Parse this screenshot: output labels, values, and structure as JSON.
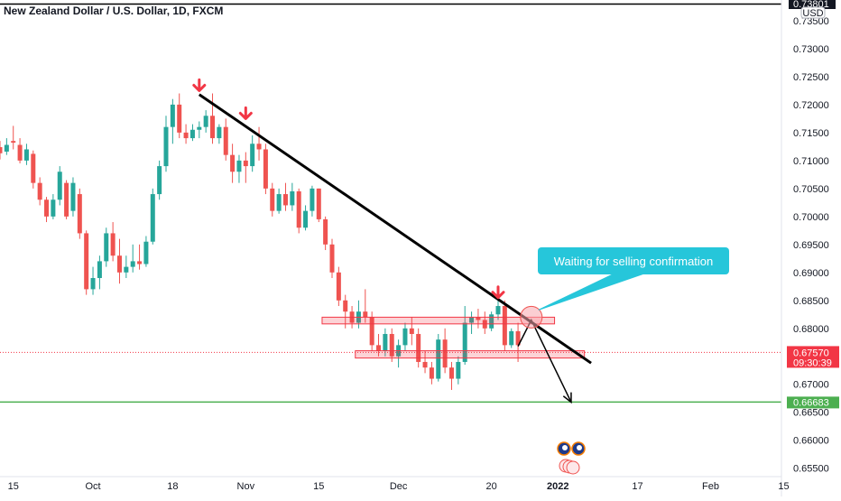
{
  "chart_data": {
    "type": "candlestick",
    "title": "New Zealand Dollar / U.S. Dollar, 1D, FXCM",
    "currency_label": "USD",
    "top_price_label": "0.73801",
    "y_ticks": [
      "0.73500",
      "0.73000",
      "0.72500",
      "0.72000",
      "0.71500",
      "0.71000",
      "0.70500",
      "0.70000",
      "0.69500",
      "0.69000",
      "0.68500",
      "0.68000",
      "0.67500",
      "0.67000",
      "0.66500",
      "0.66000",
      "0.65500"
    ],
    "ylim": [
      0.6535,
      0.7387
    ],
    "x_ticks": [
      {
        "label": "15",
        "idx": 2
      },
      {
        "label": "Oct",
        "idx": 14
      },
      {
        "label": "18",
        "idx": 26
      },
      {
        "label": "Nov",
        "idx": 37
      },
      {
        "label": "15",
        "idx": 48
      },
      {
        "label": "Dec",
        "idx": 60
      },
      {
        "label": "20",
        "idx": 74
      },
      {
        "label": "2022",
        "idx": 84,
        "bold": true
      },
      {
        "label": "17",
        "idx": 96
      },
      {
        "label": "Feb",
        "idx": 107
      },
      {
        "label": "15",
        "idx": 118
      }
    ],
    "current_price": {
      "value": 0.6757,
      "label": "0.67570",
      "countdown": "09:30:39",
      "color": "#f23645"
    },
    "support_level": {
      "value": 0.66683,
      "label": "0.66683",
      "color": "#4caf50"
    },
    "candles": [
      [
        0.7124,
        0.7135,
        0.7102,
        0.7113
      ],
      [
        0.7116,
        0.714,
        0.711,
        0.7128
      ],
      [
        0.7135,
        0.7162,
        0.712,
        0.7132
      ],
      [
        0.7128,
        0.714,
        0.7095,
        0.71
      ],
      [
        0.71,
        0.713,
        0.7092,
        0.712
      ],
      [
        0.7112,
        0.7118,
        0.705,
        0.706
      ],
      [
        0.706,
        0.707,
        0.702,
        0.703
      ],
      [
        0.703,
        0.7035,
        0.699,
        0.7
      ],
      [
        0.7,
        0.704,
        0.6995,
        0.703
      ],
      [
        0.703,
        0.709,
        0.702,
        0.708
      ],
      [
        0.706,
        0.7065,
        0.6995,
        0.7
      ],
      [
        0.701,
        0.707,
        0.7,
        0.706
      ],
      [
        0.704,
        0.705,
        0.696,
        0.697
      ],
      [
        0.697,
        0.6975,
        0.686,
        0.687
      ],
      [
        0.687,
        0.691,
        0.686,
        0.689
      ],
      [
        0.689,
        0.693,
        0.687,
        0.692
      ],
      [
        0.692,
        0.698,
        0.691,
        0.697
      ],
      [
        0.697,
        0.699,
        0.692,
        0.693
      ],
      [
        0.693,
        0.696,
        0.688,
        0.69
      ],
      [
        0.69,
        0.693,
        0.689,
        0.691
      ],
      [
        0.691,
        0.695,
        0.69,
        0.692
      ],
      [
        0.692,
        0.695,
        0.6905,
        0.6915
      ],
      [
        0.6915,
        0.6965,
        0.691,
        0.6955
      ],
      [
        0.6955,
        0.705,
        0.695,
        0.704
      ],
      [
        0.704,
        0.71,
        0.703,
        0.709
      ],
      [
        0.709,
        0.718,
        0.708,
        0.716
      ],
      [
        0.716,
        0.721,
        0.713,
        0.72
      ],
      [
        0.72,
        0.722,
        0.714,
        0.715
      ],
      [
        0.715,
        0.7165,
        0.713,
        0.714
      ],
      [
        0.714,
        0.7165,
        0.7135,
        0.7155
      ],
      [
        0.7155,
        0.717,
        0.714,
        0.716
      ],
      [
        0.716,
        0.719,
        0.715,
        0.718
      ],
      [
        0.718,
        0.722,
        0.713,
        0.714
      ],
      [
        0.714,
        0.7165,
        0.713,
        0.716
      ],
      [
        0.716,
        0.7175,
        0.71,
        0.711
      ],
      [
        0.711,
        0.713,
        0.706,
        0.708
      ],
      [
        0.708,
        0.711,
        0.706,
        0.71
      ],
      [
        0.71,
        0.7115,
        0.706,
        0.709
      ],
      [
        0.709,
        0.7145,
        0.708,
        0.713
      ],
      [
        0.713,
        0.716,
        0.71,
        0.712
      ],
      [
        0.712,
        0.713,
        0.704,
        0.705
      ],
      [
        0.705,
        0.706,
        0.7,
        0.701
      ],
      [
        0.701,
        0.705,
        0.7005,
        0.704
      ],
      [
        0.704,
        0.706,
        0.701,
        0.702
      ],
      [
        0.702,
        0.706,
        0.701,
        0.7045
      ],
      [
        0.7045,
        0.705,
        0.697,
        0.698
      ],
      [
        0.698,
        0.702,
        0.6975,
        0.701
      ],
      [
        0.701,
        0.7055,
        0.7,
        0.705
      ],
      [
        0.705,
        0.705,
        0.699,
        0.6995
      ],
      [
        0.6995,
        0.7,
        0.694,
        0.695
      ],
      [
        0.695,
        0.696,
        0.689,
        0.69
      ],
      [
        0.69,
        0.691,
        0.684,
        0.685
      ],
      [
        0.685,
        0.686,
        0.68,
        0.683
      ],
      [
        0.683,
        0.684,
        0.68,
        0.681
      ],
      [
        0.681,
        0.685,
        0.68,
        0.683
      ],
      [
        0.683,
        0.687,
        0.681,
        0.682
      ],
      [
        0.682,
        0.683,
        0.676,
        0.677
      ],
      [
        0.677,
        0.679,
        0.675,
        0.676
      ],
      [
        0.676,
        0.68,
        0.675,
        0.679
      ],
      [
        0.679,
        0.68,
        0.674,
        0.675
      ],
      [
        0.675,
        0.678,
        0.673,
        0.677
      ],
      [
        0.677,
        0.681,
        0.676,
        0.68
      ],
      [
        0.68,
        0.682,
        0.677,
        0.679
      ],
      [
        0.679,
        0.68,
        0.673,
        0.674
      ],
      [
        0.674,
        0.676,
        0.672,
        0.673
      ],
      [
        0.673,
        0.674,
        0.67,
        0.671
      ],
      [
        0.671,
        0.679,
        0.6705,
        0.678
      ],
      [
        0.678,
        0.68,
        0.672,
        0.673
      ],
      [
        0.673,
        0.674,
        0.669,
        0.671
      ],
      [
        0.671,
        0.675,
        0.67,
        0.674
      ],
      [
        0.674,
        0.684,
        0.6735,
        0.681
      ],
      [
        0.681,
        0.683,
        0.679,
        0.682
      ],
      [
        0.682,
        0.6835,
        0.68,
        0.6815
      ],
      [
        0.6815,
        0.683,
        0.679,
        0.68
      ],
      [
        0.68,
        0.683,
        0.6795,
        0.6825
      ],
      [
        0.6825,
        0.685,
        0.6815,
        0.684
      ],
      [
        0.684,
        0.685,
        0.676,
        0.677
      ],
      [
        0.677,
        0.68,
        0.6765,
        0.6795
      ],
      [
        0.6795,
        0.681,
        0.674,
        0.677
      ]
    ],
    "down_arrows": [
      {
        "idx": 30,
        "price": 0.7225,
        "color": "#f23645"
      },
      {
        "idx": 37,
        "price": 0.7175,
        "color": "#f23645"
      },
      {
        "idx": 75,
        "price": 0.6855,
        "color": "#f23645"
      }
    ],
    "trendline": {
      "from": {
        "idx": 30,
        "price": 0.7218
      },
      "to": {
        "idx": 89,
        "price": 0.6738
      },
      "color": "#000000"
    },
    "resistance_zone": {
      "from_idx": 48.5,
      "to_idx": 83.5,
      "top": 0.682,
      "bottom": 0.6808,
      "color": "#f23645"
    },
    "support_zone": {
      "from_idx": 53.5,
      "to_idx": 88,
      "top": 0.676,
      "bottom": 0.6747,
      "color": "#f23645"
    },
    "projection": {
      "points": [
        {
          "idx": 78,
          "price": 0.6768
        },
        {
          "idx": 80,
          "price": 0.6815
        },
        {
          "idx": 86,
          "price": 0.6668
        }
      ],
      "color": "#000000"
    },
    "circle_marker": {
      "idx": 80,
      "price": 0.682,
      "color": "#f7a5ad"
    },
    "callout": {
      "text": "Waiting for selling confirmation",
      "color": "#26c6da"
    },
    "event_icons": [
      "nz-flag-icon",
      "us-flag-icon"
    ]
  }
}
